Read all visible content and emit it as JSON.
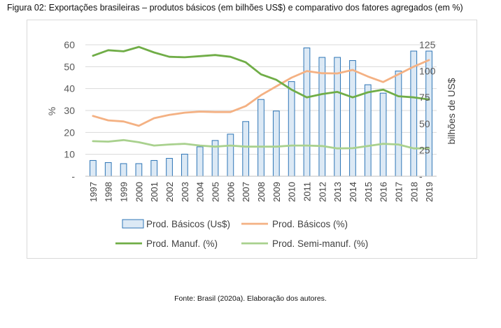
{
  "figure": {
    "title": "Figura 02: Exportações brasileiras – produtos básicos (em bilhões US$) e comparativo dos fatores agregados (em %)",
    "source": "Fonte: Brasil (2020a).  Elaboração dos autores."
  },
  "chart_data": {
    "type": "bar",
    "categories": [
      "1997",
      "1998",
      "1999",
      "2000",
      "2001",
      "2002",
      "2003",
      "2004",
      "2005",
      "2006",
      "2007",
      "2008",
      "2009",
      "2010",
      "2011",
      "2012",
      "2013",
      "2014",
      "2015",
      "2016",
      "2017",
      "2018",
      "2019"
    ],
    "ylabel": "%",
    "ylabel_right": "bilhões de US$",
    "ylim": [
      0,
      60
    ],
    "ylim_right": [
      0,
      125
    ],
    "yticks": [
      "-",
      "10",
      "20",
      "30",
      "40",
      "50",
      "60"
    ],
    "yticks_right": [
      "-",
      "25",
      "50",
      "75",
      "100",
      "125"
    ],
    "grid": true,
    "legend_position": "bottom",
    "series": [
      {
        "name": "Prod. Básicos (Us$)",
        "kind": "bar",
        "axis": "right",
        "color": "#dce9f5",
        "edge": "#2e75b6",
        "values": [
          15,
          13,
          12,
          12,
          15,
          17,
          21,
          28,
          34,
          40,
          52,
          73,
          62,
          90,
          122,
          113,
          113,
          110,
          87,
          79,
          100,
          119,
          119
        ]
      },
      {
        "name": "Prod. Básicos (%)",
        "kind": "line",
        "axis": "left",
        "color": "#f4b183",
        "values": [
          27.5,
          25.5,
          25,
          23,
          26.5,
          28,
          29,
          29.5,
          29.3,
          29.3,
          32,
          37,
          41,
          45,
          48,
          47,
          46.9,
          48.5,
          45.5,
          43,
          46.5,
          50,
          53
        ]
      },
      {
        "name": "Prod. Manuf. (%)",
        "kind": "line",
        "axis": "left",
        "color": "#70ad47",
        "values": [
          55,
          57.5,
          57,
          59,
          56.5,
          54.5,
          54.3,
          54.8,
          55.3,
          54.5,
          52,
          46.5,
          44,
          39.5,
          36,
          37.5,
          38.5,
          36,
          38.3,
          39.5,
          36.5,
          36,
          35
        ]
      },
      {
        "name": "Prod. Semi-manuf. (%)",
        "kind": "line",
        "axis": "left",
        "color": "#a9d18e",
        "values": [
          16,
          15.8,
          16.5,
          15.5,
          14,
          14.5,
          14.8,
          14,
          13.5,
          14,
          13.5,
          13.5,
          13.5,
          14,
          14,
          13.8,
          12.7,
          12.8,
          13.8,
          14.8,
          14.5,
          12.7,
          12.7
        ]
      }
    ]
  }
}
